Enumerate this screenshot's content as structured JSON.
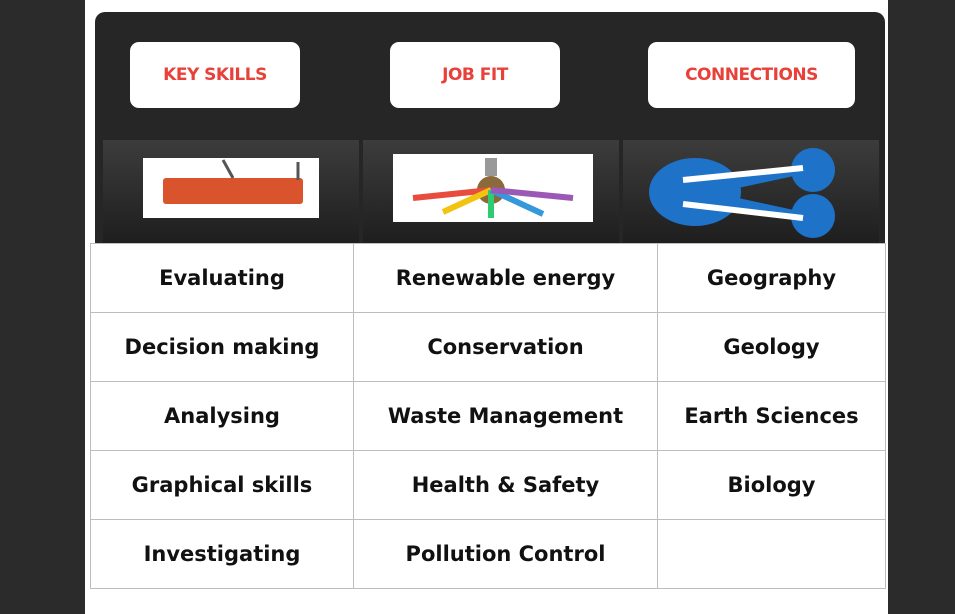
{
  "buttons": [
    "KEY SKILLS",
    "JOB FIT",
    "CONNECTIONS"
  ],
  "table": {
    "rows": [
      [
        "Evaluating",
        "Renewable energy",
        "Geography"
      ],
      [
        "Decision making",
        "Conservation",
        "Geology"
      ],
      [
        "Analysing",
        "Waste Management",
        "Earth Sciences"
      ],
      [
        "Graphical skills",
        "Health & Safety",
        "Biology"
      ],
      [
        "Investigating",
        "Pollution Control"
      ]
    ]
  }
}
